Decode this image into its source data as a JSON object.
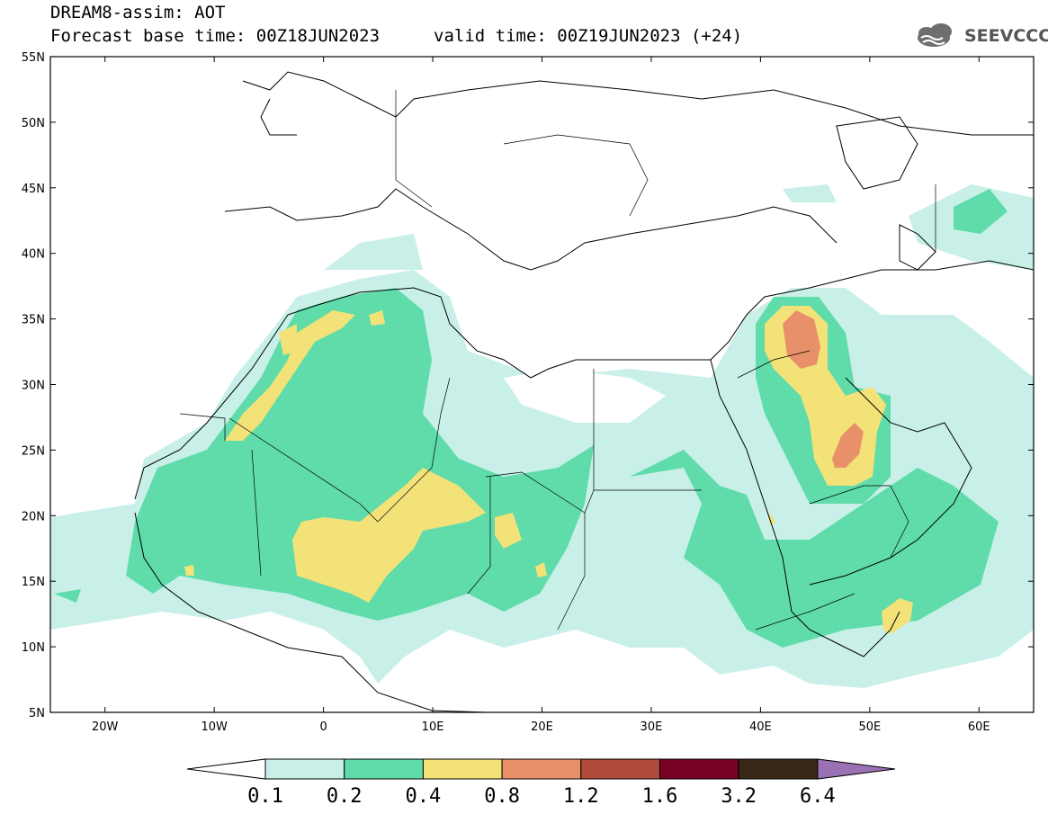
{
  "header": {
    "title": "DREAM8-assim: AOT",
    "base_time": "Forecast base time: 00Z18JUN2023",
    "valid_time": "valid time: 00Z19JUN2023 (+24)",
    "logo_text": "SEEVCCC",
    "logo_icon": "cloud-logo-icon"
  },
  "map": {
    "lon_range": [
      -25,
      65
    ],
    "lat_range": [
      5,
      55
    ],
    "lat_ticks": [
      {
        "value": 55,
        "label": "55N"
      },
      {
        "value": 50,
        "label": "50N"
      },
      {
        "value": 45,
        "label": "45N"
      },
      {
        "value": 40,
        "label": "40N"
      },
      {
        "value": 35,
        "label": "35N"
      },
      {
        "value": 30,
        "label": "30N"
      },
      {
        "value": 25,
        "label": "25N"
      },
      {
        "value": 20,
        "label": "20N"
      },
      {
        "value": 15,
        "label": "15N"
      },
      {
        "value": 10,
        "label": "10N"
      },
      {
        "value": 5,
        "label": "5N"
      }
    ],
    "lon_ticks": [
      {
        "value": -20,
        "label": "20W"
      },
      {
        "value": -10,
        "label": "10W"
      },
      {
        "value": 0,
        "label": "0"
      },
      {
        "value": 10,
        "label": "10E"
      },
      {
        "value": 20,
        "label": "20E"
      },
      {
        "value": 30,
        "label": "30E"
      },
      {
        "value": 40,
        "label": "40E"
      },
      {
        "value": 50,
        "label": "50E"
      },
      {
        "value": 60,
        "label": "60E"
      }
    ]
  },
  "colorbar": {
    "levels": [
      "0.1",
      "0.2",
      "0.4",
      "0.8",
      "1.2",
      "1.6",
      "3.2",
      "6.4"
    ],
    "colors": [
      "#ffffff",
      "#c8f0e8",
      "#5fdcaa",
      "#f2e278",
      "#e8906a",
      "#b04a3a",
      "#780022",
      "#3a2816",
      "#9a72b4"
    ]
  }
}
